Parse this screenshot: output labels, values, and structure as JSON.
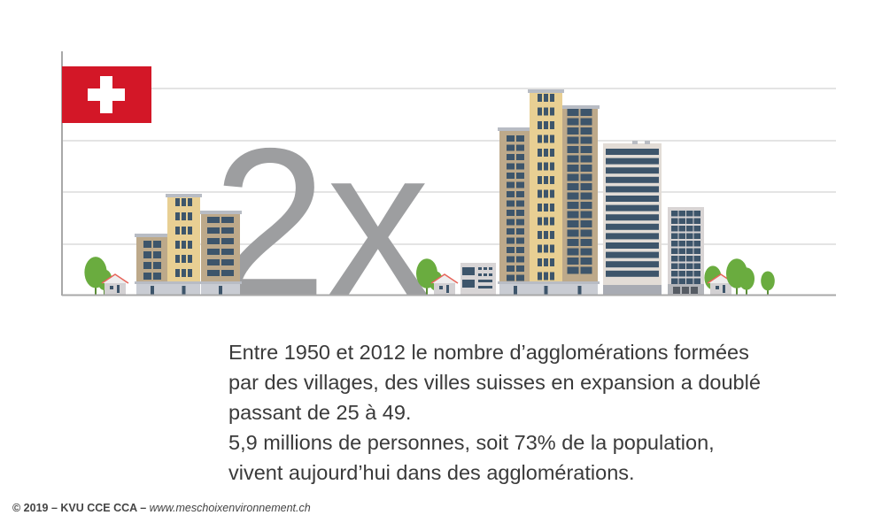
{
  "headline": "2x",
  "flag": {
    "name": "swiss-flag",
    "red": "#d31727",
    "cross": "#ffffff"
  },
  "colors": {
    "numeral": "#9d9ea0",
    "grid": "#dcdcdc",
    "axis": "#a8a8a8",
    "window": "#3d556b",
    "facade_tan": "#bda98a",
    "facade_yellow": "#e8cf93",
    "tree": "#6aac3f",
    "roof": "#e8645a"
  },
  "body": {
    "lines": [
      "Entre 1950 et 2012 le nombre d’agglomérations formées",
      "par des villages, des villes suisses en expansion a doublé",
      "passant de 25 à 49.",
      "5,9 millions de personnes, soit  73% de la population,",
      "vivent aujourd’hui dans des agglomérations."
    ]
  },
  "footer": {
    "copyright": "© 2019 – KVU CCE CCA – ",
    "url": "www.meschoixenvironnement.ch"
  }
}
